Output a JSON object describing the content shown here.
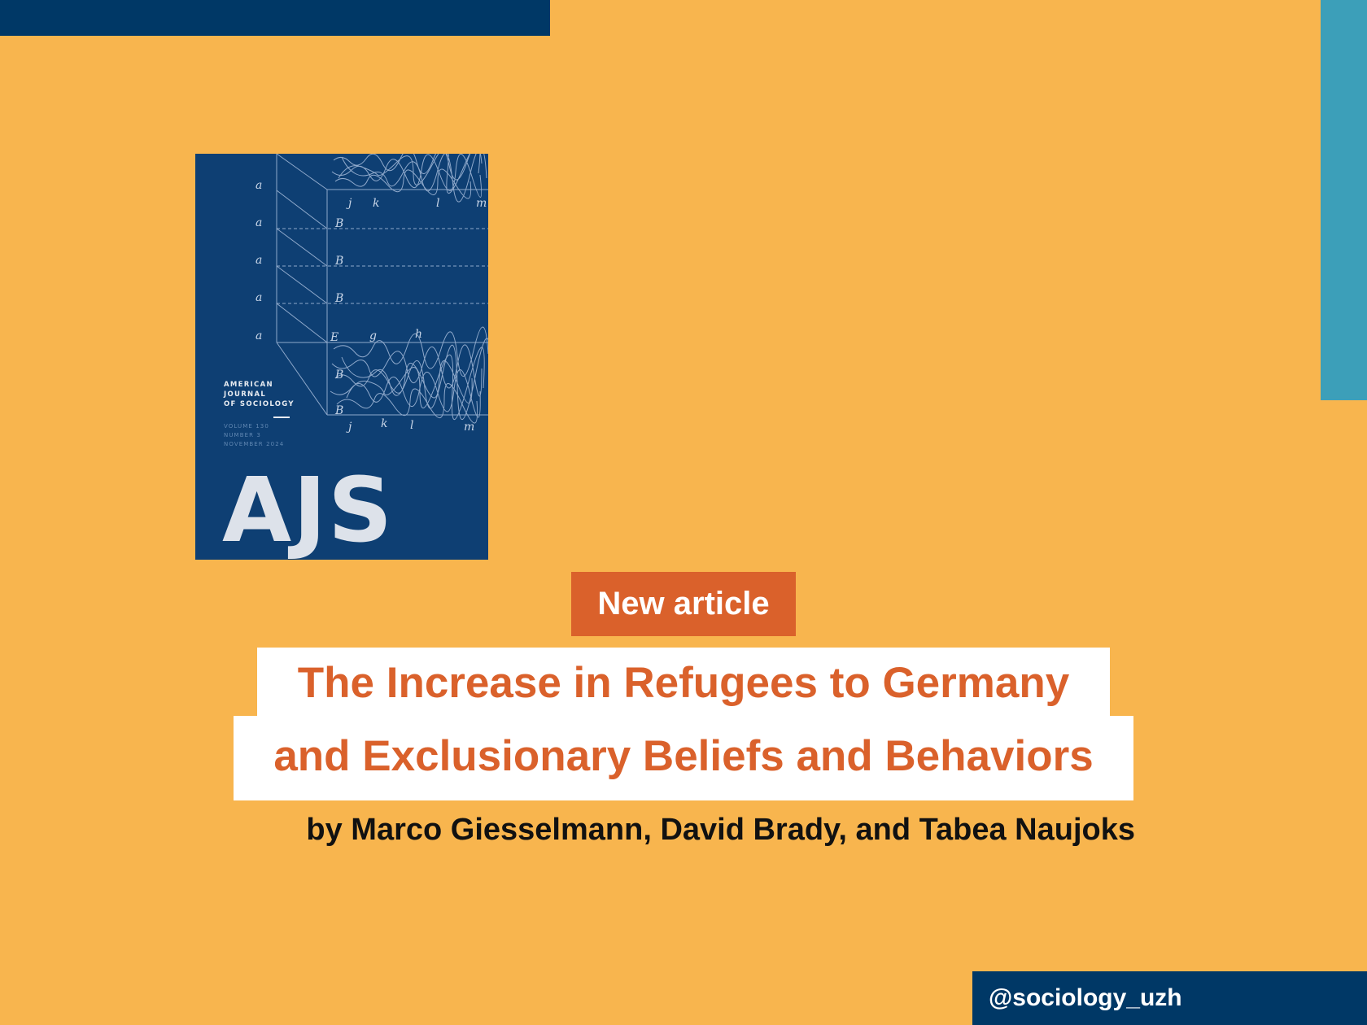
{
  "cover": {
    "journal_lines": [
      "AMERICAN",
      "JOURNAL",
      "OF SOCIOLOGY"
    ],
    "meta_lines": [
      "VOLUME 130",
      "NUMBER 3",
      "NOVEMBER 2024"
    ],
    "logo": "AJS"
  },
  "badge": "New article",
  "title": {
    "line1": "The Increase in Refugees to Germany",
    "line2": "and Exclusionary Beliefs and Behaviors"
  },
  "authors": "by Marco Giesselmann, David Brady, and Tabea Naujoks",
  "handle": "@sociology_uzh",
  "colors": {
    "background": "#F8B54E",
    "navy": "#003866",
    "teal": "#3C9FB9",
    "accent": "#DA612B",
    "cover": "#0E3F73"
  }
}
